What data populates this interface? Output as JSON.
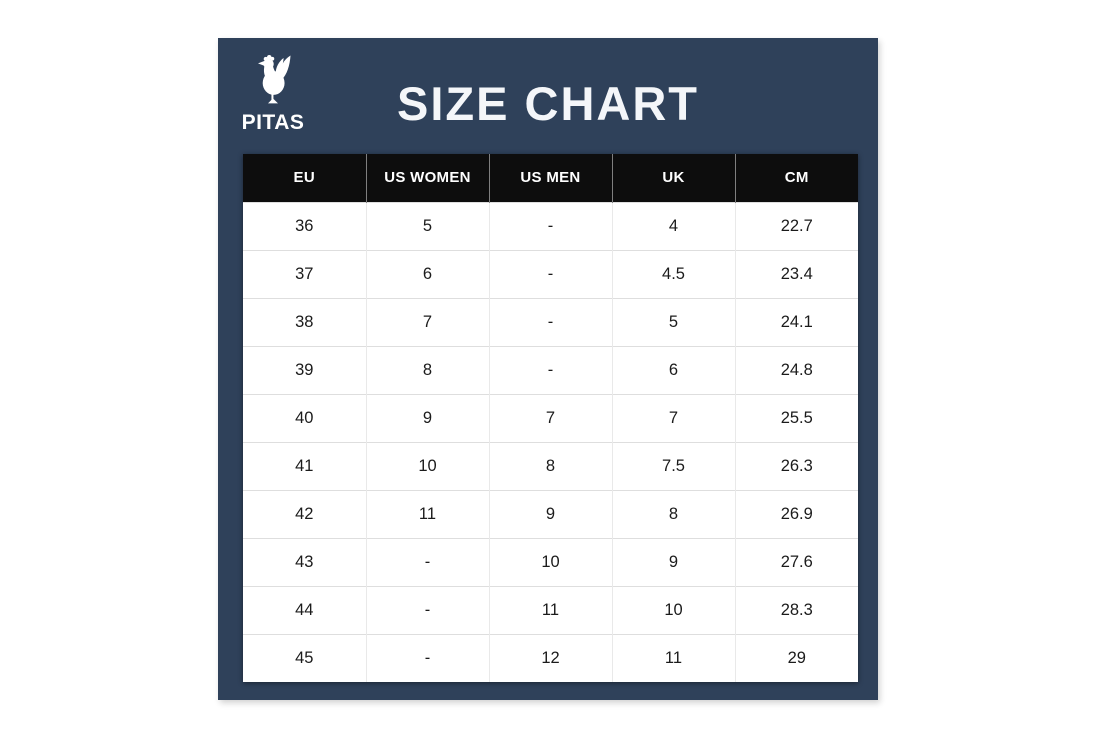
{
  "brand": {
    "name": "PITAS",
    "logo_icon": "rooster-icon"
  },
  "title": "SIZE CHART",
  "colors": {
    "panel_background": "#2f415a",
    "header_background": "#0d0d0d",
    "header_text": "#ffffff",
    "row_background": "#ffffff",
    "cell_text": "#1b1b1b",
    "title_text": "#f4f6f9",
    "row_border": "#dedede"
  },
  "chart_data": {
    "type": "table",
    "title": "SIZE CHART",
    "columns": [
      "EU",
      "US WOMEN",
      "US MEN",
      "UK",
      "CM"
    ],
    "rows": [
      [
        "36",
        "5",
        "-",
        "4",
        "22.7"
      ],
      [
        "37",
        "6",
        "-",
        "4.5",
        "23.4"
      ],
      [
        "38",
        "7",
        "-",
        "5",
        "24.1"
      ],
      [
        "39",
        "8",
        "-",
        "6",
        "24.8"
      ],
      [
        "40",
        "9",
        "7",
        "7",
        "25.5"
      ],
      [
        "41",
        "10",
        "8",
        "7.5",
        "26.3"
      ],
      [
        "42",
        "11",
        "9",
        "8",
        "26.9"
      ],
      [
        "43",
        "-",
        "10",
        "9",
        "27.6"
      ],
      [
        "44",
        "-",
        "11",
        "10",
        "28.3"
      ],
      [
        "45",
        "-",
        "12",
        "11",
        "29"
      ]
    ]
  }
}
